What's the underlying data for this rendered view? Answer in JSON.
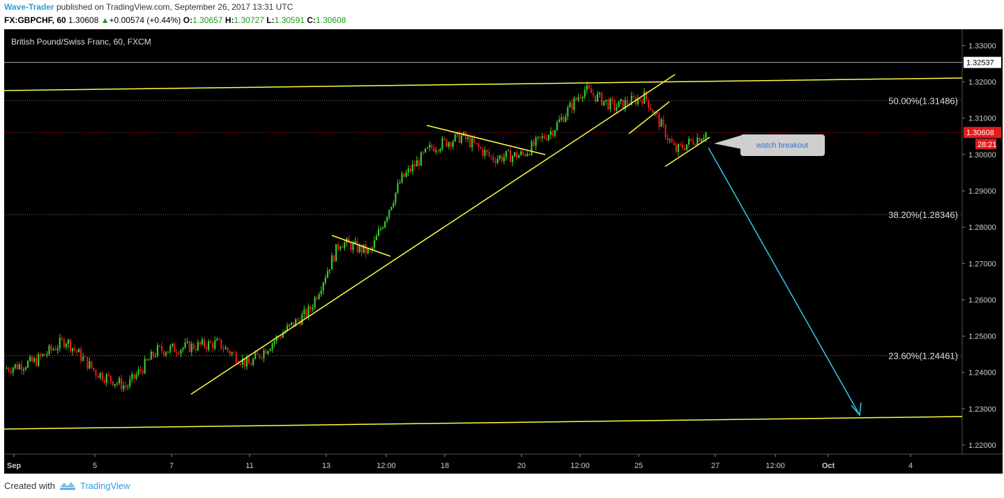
{
  "header": {
    "author": "Wave-Trader",
    "published_text": "published on TradingView.com, September 26, 2017 13:31 UTC"
  },
  "quote": {
    "symbol": "FX:GBPCHF, 60",
    "last": "1.30608",
    "change": "+0.00574 (+0.44%)",
    "change_icon": "up-triangle-icon",
    "o_label": "O:",
    "o": "1.30657",
    "h_label": "H:",
    "h": "1.30727",
    "l_label": "L:",
    "l": "1.30591",
    "c_label": "C:",
    "c": "1.30608"
  },
  "footer": {
    "created_with": "Created with",
    "brand": "TradingView",
    "brand_icon": "tradingview-logo-icon"
  },
  "chart_data": {
    "type": "candlestick",
    "title": "British Pound/Swiss Franc, 60, FXCM",
    "x_tick_labels": [
      "Sep",
      "5",
      "7",
      "11",
      "13",
      "12:00",
      "18",
      "20",
      "12:00",
      "25",
      "27",
      "12:00",
      "Oct",
      "4"
    ],
    "y_ticks": [
      "1.22000",
      "1.23000",
      "1.24000",
      "1.25000",
      "1.26000",
      "1.27000",
      "1.28000",
      "1.29000",
      "1.30000",
      "1.31000",
      "1.32000",
      "1.33000"
    ],
    "ylim": [
      1.2175,
      1.3345
    ],
    "current_price": "1.30608",
    "countdown": "28:21",
    "horizontal_level": "1.32537",
    "fib_levels": [
      {
        "label": "50.00%(1.31486)",
        "value": 1.31486
      },
      {
        "label": "38.20%(1.28346)",
        "value": 1.28346
      },
      {
        "label": "23.60%(1.24461)",
        "value": 1.24461
      }
    ],
    "annotation": "watch breakout",
    "price_path": [
      {
        "x": "Sep 1",
        "y": 1.241
      },
      {
        "x": "Sep 2",
        "y": 1.243
      },
      {
        "x": "Sep 3",
        "y": 1.249
      },
      {
        "x": "Sep 4",
        "y": 1.24
      },
      {
        "x": "Sep 5",
        "y": 1.236
      },
      {
        "x": "Sep 6",
        "y": 1.246
      },
      {
        "x": "Sep 7",
        "y": 1.247
      },
      {
        "x": "Sep 8",
        "y": 1.248
      },
      {
        "x": "Sep 10",
        "y": 1.242
      },
      {
        "x": "Sep 11",
        "y": 1.25
      },
      {
        "x": "Sep 12",
        "y": 1.257
      },
      {
        "x": "Sep 13",
        "y": 1.276
      },
      {
        "x": "Sep 14",
        "y": 1.273
      },
      {
        "x": "Sep 15",
        "y": 1.293
      },
      {
        "x": "Sep 16",
        "y": 1.302
      },
      {
        "x": "Sep 18",
        "y": 1.305
      },
      {
        "x": "Sep 19",
        "y": 1.299
      },
      {
        "x": "Sep 20",
        "y": 1.3
      },
      {
        "x": "Sep 21",
        "y": 1.307
      },
      {
        "x": "Sep 22",
        "y": 1.318
      },
      {
        "x": "Sep 24",
        "y": 1.313
      },
      {
        "x": "Sep 25",
        "y": 1.316
      },
      {
        "x": "Sep 26",
        "y": 1.301
      },
      {
        "x": "Sep 26",
        "y": 1.306
      }
    ],
    "colors": {
      "background": "#000000",
      "up": "#36d12a",
      "down": "#e01b1b",
      "trendline": "#ffff44",
      "projection": "#33ccee",
      "current_price": "#e31b1b"
    }
  }
}
